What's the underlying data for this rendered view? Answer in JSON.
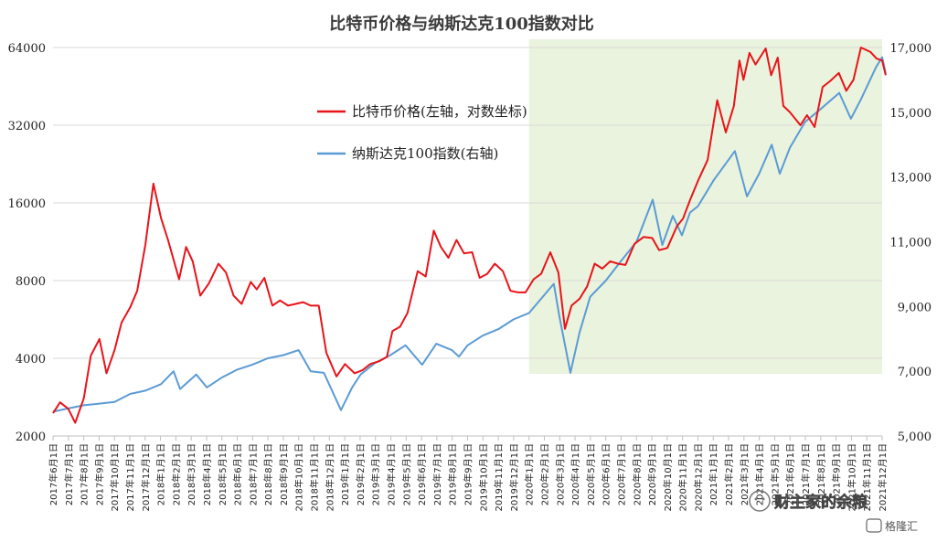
{
  "chart_data": {
    "type": "line",
    "title": "比特币价格与纳斯达克100指数对比",
    "left_axis": {
      "scale": "log",
      "ticks": [
        2000,
        4000,
        8000,
        16000,
        32000,
        64000
      ],
      "tick_labels": [
        "2000",
        "4000",
        "8000",
        "16000",
        "32000",
        "64000"
      ],
      "range": [
        2000,
        64000
      ]
    },
    "right_axis": {
      "scale": "linear",
      "ticks": [
        5000,
        7000,
        9000,
        11000,
        13000,
        15000,
        17000
      ],
      "tick_labels": [
        "5,000",
        "7,000",
        "9,000",
        "11,000",
        "13,000",
        "15,000",
        "17,000"
      ],
      "range": [
        5000,
        17000
      ]
    },
    "x_labels": [
      "2017年6月1日",
      "2017年7月1日",
      "2017年8月1日",
      "2017年9月1日",
      "2017年10月1日",
      "2017年11月1日",
      "2017年12月1日",
      "2018年1月1日",
      "2018年2月1日",
      "2018年3月1日",
      "2018年4月1日",
      "2018年5月1日",
      "2018年6月1日",
      "2018年7月1日",
      "2018年8月1日",
      "2018年9月1日",
      "2018年10月1日",
      "2018年11月1日",
      "2018年12月1日",
      "2019年1月1日",
      "2019年2月1日",
      "2019年3月1日",
      "2019年4月1日",
      "2019年5月1日",
      "2019年6月1日",
      "2019年7月1日",
      "2019年8月1日",
      "2019年9月1日",
      "2019年10月1日",
      "2019年11月1日",
      "2019年12月1日",
      "2020年1月1日",
      "2020年2月1日",
      "2020年3月1日",
      "2020年4月1日",
      "2020年5月1日",
      "2020年6月1日",
      "2020年7月1日",
      "2020年8月1日",
      "2020年9月1日",
      "2020年10月1日",
      "2020年11月1日",
      "2020年12月1日",
      "2021年1月1日",
      "2021年2月1日",
      "2021年3月1日",
      "2021年4月1日",
      "2021年5月1日",
      "2021年6月1日",
      "2021年7月1日",
      "2021年8月1日",
      "2021年9月1日",
      "2021年10月1日",
      "2021年11月1日",
      "2021年12月1日"
    ],
    "highlight_range": [
      "2020年1月1日",
      "2021年12月1日"
    ],
    "highlight_color": "#eaf3dd",
    "grid": true,
    "legend_position": "top-left inside plot",
    "series": [
      {
        "name": "比特币价格(左轴，对数坐标)",
        "axis": "left",
        "color": "#e8141a",
        "x": [
          "2017-06-01",
          "2017-06-15",
          "2017-07-01",
          "2017-07-15",
          "2017-08-01",
          "2017-08-15",
          "2017-09-01",
          "2017-09-15",
          "2017-10-01",
          "2017-10-15",
          "2017-11-01",
          "2017-11-15",
          "2017-12-01",
          "2017-12-17",
          "2018-01-01",
          "2018-01-15",
          "2018-02-06",
          "2018-02-20",
          "2018-03-05",
          "2018-03-20",
          "2018-04-06",
          "2018-04-25",
          "2018-05-10",
          "2018-05-25",
          "2018-06-10",
          "2018-06-28",
          "2018-07-10",
          "2018-07-25",
          "2018-08-10",
          "2018-08-25",
          "2018-09-10",
          "2018-09-25",
          "2018-10-10",
          "2018-10-25",
          "2018-11-10",
          "2018-11-25",
          "2018-12-15",
          "2019-01-01",
          "2019-01-20",
          "2019-02-05",
          "2019-02-20",
          "2019-03-10",
          "2019-03-25",
          "2019-04-05",
          "2019-04-20",
          "2019-05-05",
          "2019-05-25",
          "2019-06-10",
          "2019-06-26",
          "2019-07-10",
          "2019-07-25",
          "2019-08-10",
          "2019-08-25",
          "2019-09-10",
          "2019-09-25",
          "2019-10-10",
          "2019-10-25",
          "2019-11-10",
          "2019-11-25",
          "2019-12-10",
          "2019-12-25",
          "2020-01-10",
          "2020-01-25",
          "2020-02-12",
          "2020-02-28",
          "2020-03-12",
          "2020-03-25",
          "2020-04-10",
          "2020-04-25",
          "2020-05-10",
          "2020-05-25",
          "2020-06-10",
          "2020-06-25",
          "2020-07-10",
          "2020-07-28",
          "2020-08-15",
          "2020-09-01",
          "2020-09-15",
          "2020-10-01",
          "2020-10-20",
          "2020-11-01",
          "2020-11-15",
          "2020-12-01",
          "2020-12-20",
          "2021-01-08",
          "2021-01-25",
          "2021-02-10",
          "2021-02-21",
          "2021-03-01",
          "2021-03-13",
          "2021-03-25",
          "2021-04-14",
          "2021-04-25",
          "2021-05-08",
          "2021-05-19",
          "2021-06-01",
          "2021-06-22",
          "2021-07-05",
          "2021-07-20",
          "2021-08-05",
          "2021-08-20",
          "2021-09-06",
          "2021-09-21",
          "2021-10-05",
          "2021-10-20",
          "2021-11-08",
          "2021-11-20",
          "2021-12-01",
          "2021-12-08"
        ],
        "values": [
          2450,
          2700,
          2550,
          2250,
          2800,
          4100,
          4750,
          3500,
          4300,
          5500,
          6300,
          7300,
          11000,
          19000,
          14000,
          11500,
          8100,
          10800,
          9500,
          7000,
          7800,
          9300,
          8600,
          7000,
          6500,
          7900,
          7400,
          8200,
          6400,
          6700,
          6400,
          6500,
          6600,
          6400,
          6400,
          4200,
          3400,
          3800,
          3500,
          3600,
          3800,
          3900,
          4050,
          5100,
          5300,
          6000,
          8700,
          8300,
          12500,
          10800,
          9800,
          11500,
          10200,
          10300,
          8200,
          8500,
          9300,
          8700,
          7300,
          7200,
          7200,
          8100,
          8500,
          10300,
          8600,
          5200,
          6400,
          6800,
          7600,
          9300,
          8900,
          9500,
          9300,
          9200,
          11100,
          11800,
          11700,
          10500,
          10700,
          13000,
          13900,
          16400,
          19500,
          23500,
          40000,
          30000,
          38000,
          57000,
          48000,
          61000,
          55000,
          63500,
          50000,
          58500,
          38000,
          36000,
          32000,
          35000,
          31500,
          45000,
          47500,
          51000,
          43500,
          48000,
          64000,
          61500,
          58000,
          57000,
          50000
        ]
      },
      {
        "name": "纳斯达克100指数(右轴)",
        "axis": "right",
        "color": "#5b9bd5",
        "x": [
          "2017-06-01",
          "2017-07-01",
          "2017-08-01",
          "2017-09-01",
          "2017-10-01",
          "2017-11-01",
          "2017-12-01",
          "2018-01-01",
          "2018-01-26",
          "2018-02-08",
          "2018-03-12",
          "2018-04-02",
          "2018-05-01",
          "2018-06-01",
          "2018-07-01",
          "2018-08-01",
          "2018-09-01",
          "2018-10-01",
          "2018-10-25",
          "2018-11-20",
          "2018-12-24",
          "2019-01-15",
          "2019-02-01",
          "2019-03-01",
          "2019-04-01",
          "2019-05-01",
          "2019-06-03",
          "2019-07-01",
          "2019-08-01",
          "2019-08-15",
          "2019-09-01",
          "2019-10-01",
          "2019-11-01",
          "2019-12-01",
          "2020-01-01",
          "2020-02-19",
          "2020-03-01",
          "2020-03-23",
          "2020-04-10",
          "2020-05-01",
          "2020-06-01",
          "2020-07-01",
          "2020-08-01",
          "2020-09-02",
          "2020-09-21",
          "2020-10-12",
          "2020-10-30",
          "2020-11-15",
          "2020-12-01",
          "2021-01-01",
          "2021-02-12",
          "2021-03-08",
          "2021-04-01",
          "2021-04-26",
          "2021-05-12",
          "2021-06-01",
          "2021-07-01",
          "2021-08-01",
          "2021-09-07",
          "2021-09-30",
          "2021-10-20",
          "2021-11-19",
          "2021-12-01",
          "2021-12-08"
        ],
        "values": [
          5750,
          5850,
          5950,
          6000,
          6050,
          6300,
          6400,
          6600,
          7000,
          6450,
          6900,
          6500,
          6800,
          7050,
          7200,
          7400,
          7500,
          7650,
          7000,
          6950,
          5800,
          6500,
          6900,
          7250,
          7500,
          7800,
          7200,
          7850,
          7650,
          7450,
          7800,
          8100,
          8300,
          8600,
          8800,
          9700,
          8700,
          6950,
          8200,
          9300,
          9800,
          10400,
          11000,
          12300,
          10900,
          11800,
          11200,
          11900,
          12100,
          12900,
          13800,
          12400,
          13100,
          14000,
          13100,
          13900,
          14700,
          15100,
          15600,
          14800,
          15400,
          16400,
          16700,
          16200
        ]
      }
    ]
  },
  "legend": {
    "btc_label": "比特币价格(左轴，对数坐标)",
    "ndx_label": "纳斯达克100指数(右轴)"
  },
  "watermark": {
    "text": "财主家的余粮",
    "brand": "格隆汇"
  }
}
